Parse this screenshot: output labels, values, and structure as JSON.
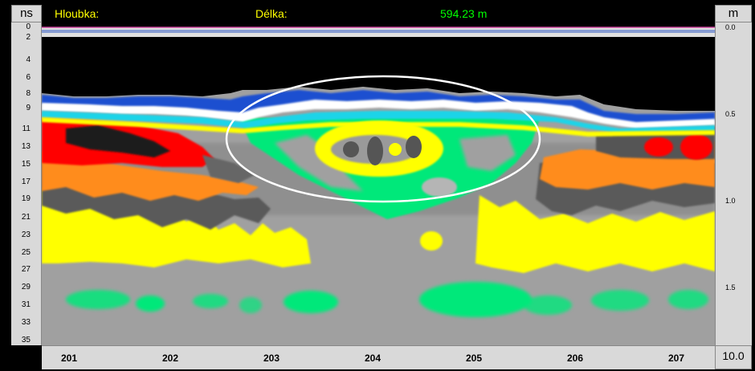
{
  "header": {
    "left_unit": "ns",
    "depth_label": "Hloubka:",
    "length_label": "Délka:",
    "length_value": "594.23 m",
    "right_unit": "m"
  },
  "scale_box": {
    "value": "10.0"
  },
  "axes": {
    "left_ticks": [
      "0",
      "2",
      "4",
      "6",
      "8",
      "9",
      "11",
      "13",
      "15",
      "17",
      "19",
      "21",
      "23",
      "25",
      "27",
      "29",
      "31",
      "33",
      "35"
    ],
    "right_ticks": [
      "0.0",
      "0.5",
      "1.0",
      "1.5"
    ],
    "bottom_ticks": [
      "201",
      "202",
      "203",
      "204",
      "205",
      "206",
      "207"
    ]
  },
  "colors": {
    "panel": "#d9d9d9",
    "background": "#a0a0a0",
    "air": "#000000",
    "green": "#00e87a",
    "yellow": "#ffff00",
    "orange": "#ff8c1a",
    "red": "#ff0000",
    "dark": "#555555",
    "annotation": "#ffffff"
  }
}
